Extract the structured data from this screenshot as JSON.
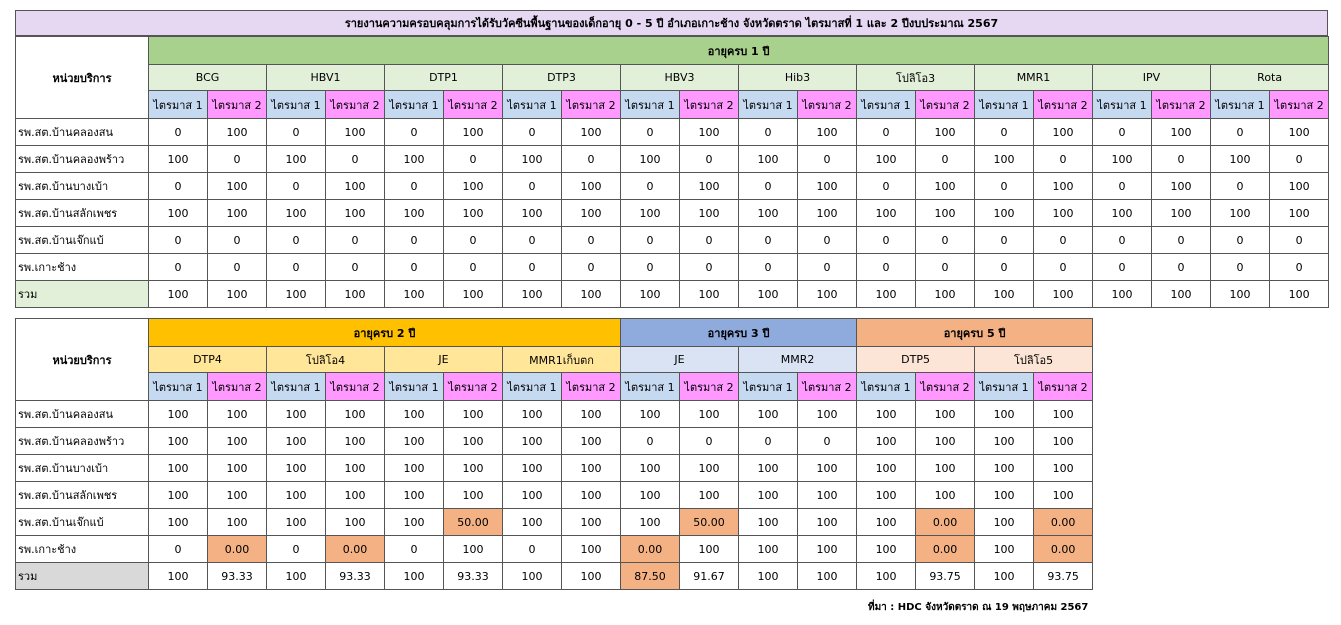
{
  "title": "รายงานความครอบคลุมการได้รับวัคซีนพื้นฐานของเด็กอายุ 0 - 5 ปี อำเภอเกาะช้าง จังหวัดตราด ไตรมาสที่ 1 และ 2  ปีงบประมาณ 2567",
  "unit_header": "หน่วยบริการ",
  "quarter_labels": [
    "ไตรมาส 1",
    "ไตรมาส 2"
  ],
  "units": [
    "รพ.สต.บ้านคลองสน",
    "รพ.สต.บ้านคลองพร้าว",
    "รพ.สต.บ้านบางเบ้า",
    "รพ.สต.บ้านสลักเพชร",
    "รพ.สต.บ้านเจ๊กแบ้",
    "รพ.เกาะช้าง"
  ],
  "total_label": "รวม",
  "table1": {
    "groups": [
      {
        "label": "อายุครบ 1 ปี",
        "color": "#a9d18e",
        "vaccine_color": "#e2efd9",
        "span": 10
      }
    ],
    "vaccines": [
      "BCG",
      "HBV1",
      "DTP1",
      "DTP3",
      "HBV3",
      "Hib3",
      "โปลิโอ3",
      "MMR1",
      "IPV",
      "Rota"
    ],
    "rows": [
      [
        "0",
        "100",
        "0",
        "100",
        "0",
        "100",
        "0",
        "100",
        "0",
        "100",
        "0",
        "100",
        "0",
        "100",
        "0",
        "100",
        "0",
        "100",
        "0",
        "100"
      ],
      [
        "100",
        "0",
        "100",
        "0",
        "100",
        "0",
        "100",
        "0",
        "100",
        "0",
        "100",
        "0",
        "100",
        "0",
        "100",
        "0",
        "100",
        "0",
        "100",
        "0"
      ],
      [
        "0",
        "100",
        "0",
        "100",
        "0",
        "100",
        "0",
        "100",
        "0",
        "100",
        "0",
        "100",
        "0",
        "100",
        "0",
        "100",
        "0",
        "100",
        "0",
        "100"
      ],
      [
        "100",
        "100",
        "100",
        "100",
        "100",
        "100",
        "100",
        "100",
        "100",
        "100",
        "100",
        "100",
        "100",
        "100",
        "100",
        "100",
        "100",
        "100",
        "100",
        "100"
      ],
      [
        "0",
        "0",
        "0",
        "0",
        "0",
        "0",
        "0",
        "0",
        "0",
        "0",
        "0",
        "0",
        "0",
        "0",
        "0",
        "0",
        "0",
        "0",
        "0",
        "0"
      ],
      [
        "0",
        "0",
        "0",
        "0",
        "0",
        "0",
        "0",
        "0",
        "0",
        "0",
        "0",
        "0",
        "0",
        "0",
        "0",
        "0",
        "0",
        "0",
        "0",
        "0"
      ]
    ],
    "totals": [
      "100",
      "100",
      "100",
      "100",
      "100",
      "100",
      "100",
      "100",
      "100",
      "100",
      "100",
      "100",
      "100",
      "100",
      "100",
      "100",
      "100",
      "100",
      "100",
      "100"
    ]
  },
  "table2": {
    "groups": [
      {
        "label": "อายุครบ 2 ปี",
        "color": "#ffc000",
        "vaccine_color": "#ffe699",
        "span": 4
      },
      {
        "label": "อายุครบ 3 ปี",
        "color": "#8faadc",
        "vaccine_color": "#dae3f3",
        "span": 2
      },
      {
        "label": "อายุครบ 5 ปี",
        "color": "#f4b183",
        "vaccine_color": "#fce4d6",
        "span": 2
      }
    ],
    "vaccines": [
      "DTP4",
      "โปลิโอ4",
      "JE",
      "MMR1เก็บตก",
      "JE",
      "MMR2",
      "DTP5",
      "โปลิโอ5"
    ],
    "rows": [
      [
        "100",
        "100",
        "100",
        "100",
        "100",
        "100",
        "100",
        "100",
        "100",
        "100",
        "100",
        "100",
        "100",
        "100",
        "100",
        "100"
      ],
      [
        "100",
        "100",
        "100",
        "100",
        "100",
        "100",
        "100",
        "100",
        "0",
        "0",
        "0",
        "0",
        "100",
        "100",
        "100",
        "100"
      ],
      [
        "100",
        "100",
        "100",
        "100",
        "100",
        "100",
        "100",
        "100",
        "100",
        "100",
        "100",
        "100",
        "100",
        "100",
        "100",
        "100"
      ],
      [
        "100",
        "100",
        "100",
        "100",
        "100",
        "100",
        "100",
        "100",
        "100",
        "100",
        "100",
        "100",
        "100",
        "100",
        "100",
        "100"
      ],
      [
        "100",
        "100",
        "100",
        "100",
        "100",
        "50.00",
        "100",
        "100",
        "100",
        "50.00",
        "100",
        "100",
        "100",
        "0.00",
        "100",
        "0.00"
      ],
      [
        "0",
        "0.00",
        "0",
        "0.00",
        "0",
        "100",
        "0",
        "100",
        "0.00",
        "100",
        "100",
        "100",
        "100",
        "0.00",
        "100",
        "0.00"
      ]
    ],
    "totals": [
      "100",
      "93.33",
      "100",
      "93.33",
      "100",
      "93.33",
      "100",
      "100",
      "87.50",
      "91.67",
      "100",
      "100",
      "100",
      "93.75",
      "100",
      "93.75"
    ],
    "highlight_color": "#f4b183",
    "highlight_cells": [
      [
        4,
        5
      ],
      [
        4,
        9
      ],
      [
        4,
        13
      ],
      [
        4,
        15
      ],
      [
        5,
        1
      ],
      [
        5,
        3
      ],
      [
        5,
        8
      ],
      [
        5,
        13
      ],
      [
        5,
        15
      ]
    ],
    "highlight_total_cells": [
      8
    ]
  },
  "source": "ที่มา : HDC จังหวัดตราด ณ 19 พฤษภาคม 2567"
}
